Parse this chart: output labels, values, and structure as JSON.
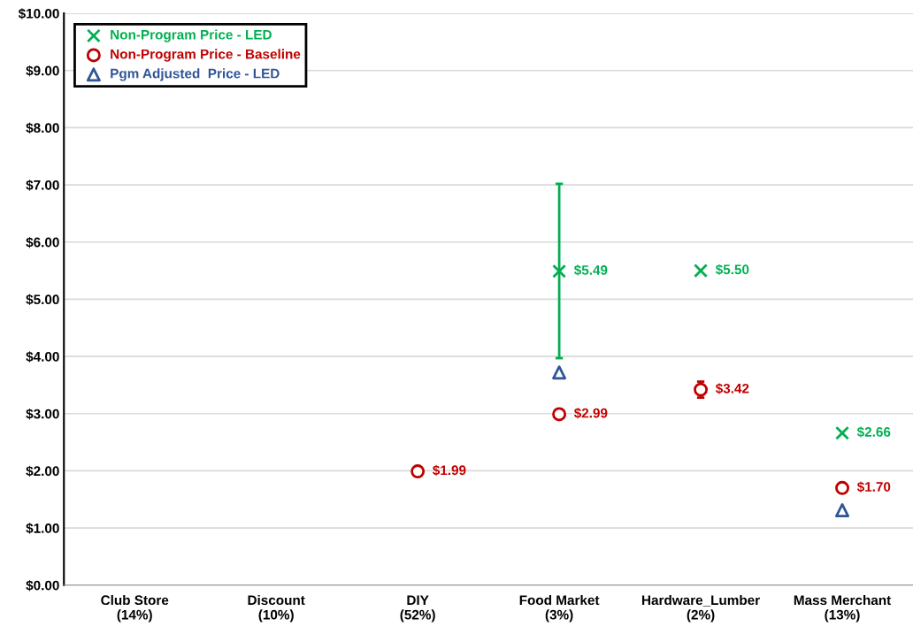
{
  "chart_data": {
    "type": "scatter",
    "categories": [
      "Club Store\n(14%)",
      "Discount\n(10%)",
      "DIY\n(52%)",
      "Food Market\n(3%)",
      "Hardware_Lumber\n(2%)",
      "Mass Merchant\n(13%)"
    ],
    "series": [
      {
        "name": "Non-Program Price - LED",
        "color": "#00b050",
        "marker": "cross",
        "values": [
          null,
          null,
          null,
          5.49,
          5.5,
          2.66
        ],
        "errors": [
          null,
          null,
          null,
          [
            3.97,
            7.02
          ],
          null,
          null
        ],
        "value_labels": [
          null,
          null,
          null,
          "$5.49",
          "$5.50",
          "$2.66"
        ]
      },
      {
        "name": "Non-Program Price - Baseline",
        "color": "#c00000",
        "marker": "circle",
        "values": [
          null,
          null,
          1.99,
          2.99,
          3.42,
          1.7
        ],
        "errors": [
          null,
          null,
          [
            1.96,
            2.02
          ],
          null,
          [
            3.28,
            3.56
          ],
          null
        ],
        "value_labels": [
          null,
          null,
          "$1.99",
          "$2.99",
          "$3.42",
          "$1.70"
        ]
      },
      {
        "name": "Pgm Adjusted  Price - LED",
        "color": "#2f5597",
        "marker": "triangle",
        "values": [
          null,
          null,
          null,
          3.72,
          null,
          1.31
        ]
      }
    ],
    "ylim": [
      0,
      10
    ],
    "yticks": [
      {
        "value": 0,
        "label": "$0.00"
      },
      {
        "value": 1,
        "label": "$1.00"
      },
      {
        "value": 2,
        "label": "$2.00"
      },
      {
        "value": 3,
        "label": "$3.00"
      },
      {
        "value": 4,
        "label": "$4.00"
      },
      {
        "value": 5,
        "label": "$5.00"
      },
      {
        "value": 6,
        "label": "$6.00"
      },
      {
        "value": 7,
        "label": "$7.00"
      },
      {
        "value": 8,
        "label": "$8.00"
      },
      {
        "value": 9,
        "label": "$9.00"
      },
      {
        "value": 10,
        "label": "$10.00"
      }
    ],
    "grid": "y",
    "legend": "top left"
  }
}
